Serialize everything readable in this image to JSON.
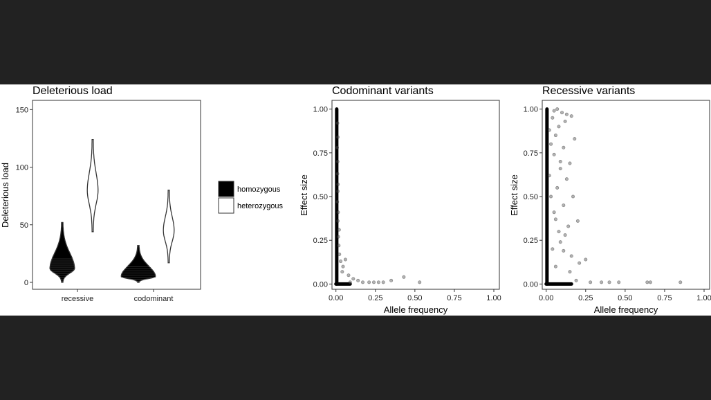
{
  "chart_data": [
    {
      "type": "violin",
      "title": "Deleterious load",
      "xlabel": "",
      "ylabel": "Deleterious load",
      "categories": [
        "recessive",
        "codominant"
      ],
      "ylim": [
        -6,
        158
      ],
      "yticks": [
        0,
        50,
        100,
        150
      ],
      "grid": false,
      "series": [
        {
          "name": "homozygous",
          "fill": "#000000",
          "distributions": [
            {
              "category": "recessive",
              "min": 0,
              "max": 52,
              "peak": 12
            },
            {
              "category": "codominant",
              "min": 0,
              "max": 32,
              "peak": 5
            }
          ]
        },
        {
          "name": "heterozygous",
          "fill": "#ffffff",
          "distributions": [
            {
              "category": "recessive",
              "min": 44,
              "max": 124,
              "peak": 80
            },
            {
              "category": "codominant",
              "min": 17,
              "max": 80,
              "peak": 45
            }
          ]
        }
      ],
      "legend_position": "right"
    },
    {
      "type": "scatter",
      "title": "Codominant variants",
      "xlabel": "Allele frequency",
      "ylabel": "Effect size",
      "xlim": [
        -0.025,
        1.035
      ],
      "ylim": [
        -0.03,
        1.05
      ],
      "xticks": [
        0,
        0.25,
        0.5,
        0.75,
        1
      ],
      "yticks": [
        0,
        0.25,
        0.5,
        0.75,
        1
      ],
      "xtick_labels": [
        "0.00",
        "0.25",
        "0.50",
        "0.75",
        "1.00"
      ],
      "ytick_labels": [
        "0.00",
        "0.25",
        "0.50",
        "0.75",
        "1.00"
      ],
      "grid": false,
      "points": [
        [
          0.01,
          0.92
        ],
        [
          0.012,
          0.84
        ],
        [
          0.008,
          0.78
        ],
        [
          0.011,
          0.7
        ],
        [
          0.01,
          0.63
        ],
        [
          0.013,
          0.57
        ],
        [
          0.012,
          0.53
        ],
        [
          0.009,
          0.47
        ],
        [
          0.014,
          0.41
        ],
        [
          0.012,
          0.36
        ],
        [
          0.02,
          0.31
        ],
        [
          0.015,
          0.27
        ],
        [
          0.018,
          0.22
        ],
        [
          0.022,
          0.17
        ],
        [
          0.03,
          0.13
        ],
        [
          0.045,
          0.1
        ],
        [
          0.06,
          0.14
        ],
        [
          0.04,
          0.07
        ],
        [
          0.08,
          0.05
        ],
        [
          0.11,
          0.03
        ],
        [
          0.17,
          0.01
        ],
        [
          0.21,
          0.01
        ],
        [
          0.24,
          0.01
        ],
        [
          0.27,
          0.01
        ],
        [
          0.3,
          0.01
        ],
        [
          0.43,
          0.04
        ],
        [
          0.53,
          0.01
        ],
        [
          0.35,
          0.02
        ],
        [
          0.14,
          0.02
        ],
        [
          0.09,
          0.01
        ]
      ]
    },
    {
      "type": "scatter",
      "title": "Recessive variants",
      "xlabel": "Allele frequency",
      "ylabel": "Effect size",
      "xlim": [
        -0.025,
        1.035
      ],
      "ylim": [
        -0.03,
        1.05
      ],
      "xticks": [
        0,
        0.25,
        0.5,
        0.75,
        1
      ],
      "yticks": [
        0,
        0.25,
        0.5,
        0.75,
        1
      ],
      "xtick_labels": [
        "0.00",
        "0.25",
        "0.50",
        "0.75",
        "1.00"
      ],
      "ytick_labels": [
        "0.00",
        "0.25",
        "0.50",
        "0.75",
        "1.00"
      ],
      "grid": false,
      "points": [
        [
          0.05,
          0.99
        ],
        [
          0.07,
          1.0
        ],
        [
          0.1,
          0.98
        ],
        [
          0.13,
          0.97
        ],
        [
          0.16,
          0.96
        ],
        [
          0.12,
          0.93
        ],
        [
          0.04,
          0.95
        ],
        [
          0.08,
          0.9
        ],
        [
          0.02,
          0.88
        ],
        [
          0.06,
          0.85
        ],
        [
          0.03,
          0.8
        ],
        [
          0.11,
          0.78
        ],
        [
          0.05,
          0.74
        ],
        [
          0.09,
          0.7
        ],
        [
          0.15,
          0.69
        ],
        [
          0.13,
          0.6
        ],
        [
          0.07,
          0.55
        ],
        [
          0.17,
          0.5
        ],
        [
          0.03,
          0.5
        ],
        [
          0.11,
          0.45
        ],
        [
          0.05,
          0.41
        ],
        [
          0.2,
          0.36
        ],
        [
          0.14,
          0.33
        ],
        [
          0.08,
          0.3
        ],
        [
          0.09,
          0.24
        ],
        [
          0.04,
          0.2
        ],
        [
          0.11,
          0.19
        ],
        [
          0.16,
          0.16
        ],
        [
          0.21,
          0.12
        ],
        [
          0.25,
          0.14
        ],
        [
          0.06,
          0.1
        ],
        [
          0.15,
          0.07
        ],
        [
          0.19,
          0.02
        ],
        [
          0.28,
          0.01
        ],
        [
          0.35,
          0.01
        ],
        [
          0.4,
          0.01
        ],
        [
          0.46,
          0.01
        ],
        [
          0.64,
          0.01
        ],
        [
          0.66,
          0.01
        ],
        [
          0.85,
          0.01
        ],
        [
          0.12,
          0.28
        ],
        [
          0.02,
          0.62
        ],
        [
          0.18,
          0.83
        ],
        [
          0.09,
          0.66
        ],
        [
          0.06,
          0.37
        ]
      ]
    }
  ]
}
